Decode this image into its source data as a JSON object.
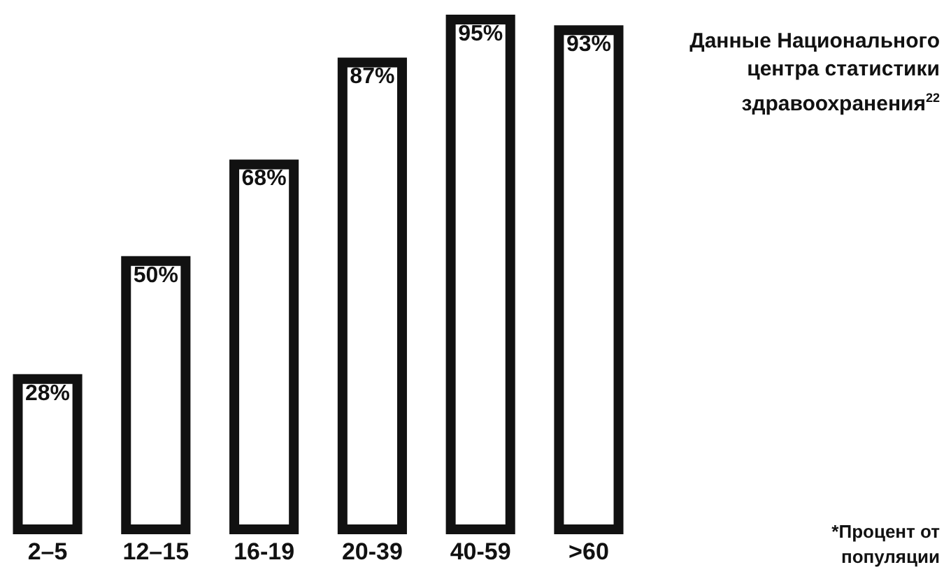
{
  "chart_data": {
    "type": "bar",
    "title": "Данные Национального центра статистики здравоохранения$^{22}$",
    "categories": [
      "2–5",
      "12–15",
      "16-19",
      "20-39",
      "40-59",
      ">60"
    ],
    "values": [
      28,
      50,
      68,
      87,
      95,
      93
    ],
    "value_labels": [
      "28%",
      "50%",
      "68%",
      "87%",
      "95%",
      "93%"
    ],
    "color": "#ffffff",
    "annotations": [
      "*Процент от популяции"
    ]
  }
}
